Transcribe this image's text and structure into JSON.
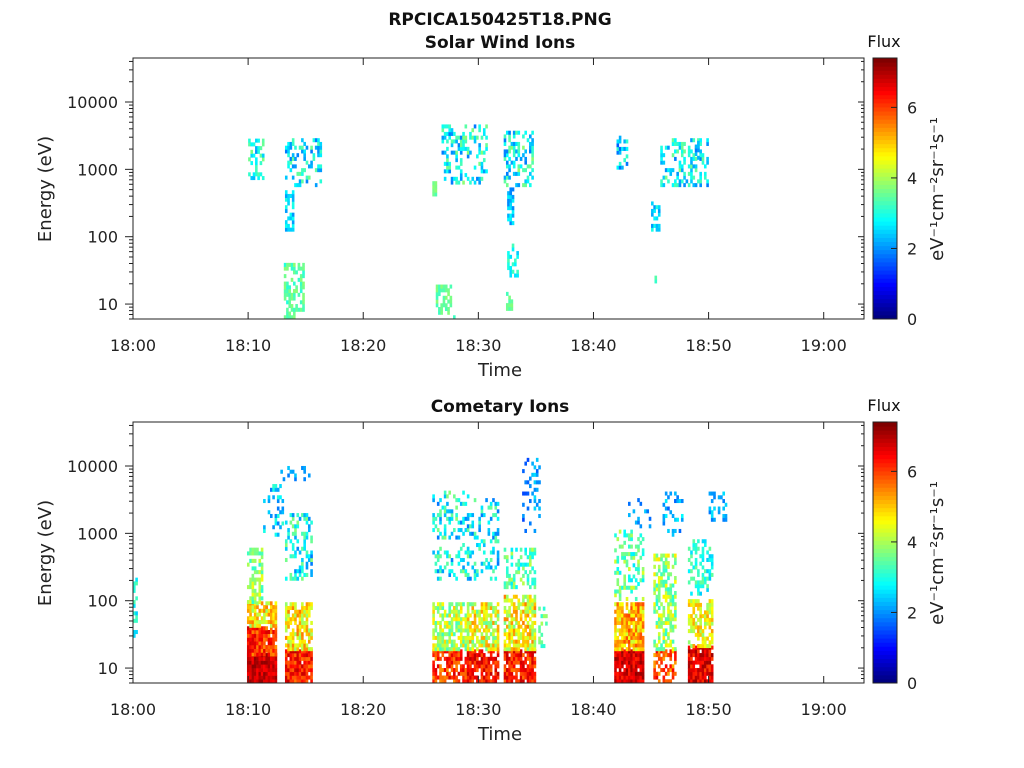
{
  "chart_data": [
    {
      "type": "heatmap",
      "figure_title": "RPCICA150425T18.PNG",
      "title": "Solar Wind Ions",
      "xlabel": "Time",
      "ylabel": "Energy (eV)",
      "x_ticks": [
        "18:00",
        "18:10",
        "18:20",
        "18:30",
        "18:40",
        "18:50",
        "19:00"
      ],
      "x_range_minutes": [
        0,
        63.5
      ],
      "y_scale": "log",
      "y_ticks": [
        "10",
        "100",
        "1000",
        "10000"
      ],
      "y_range": [
        6,
        45000
      ],
      "colorbar": {
        "title": "Flux",
        "label": "eV⁻¹cm⁻²sr⁻¹s⁻¹",
        "ticks": [
          "0",
          "2",
          "4",
          "6"
        ],
        "range": [
          0,
          7.4
        ],
        "colormap": "jet"
      },
      "clusters": [
        {
          "t": [
            10.0,
            11.3
          ],
          "e": [
            700,
            2800
          ],
          "flux": [
            2.0,
            3.8
          ],
          "d": 0.45
        },
        {
          "t": [
            13.2,
            16.2
          ],
          "e": [
            550,
            2600
          ],
          "flux": [
            1.8,
            3.6
          ],
          "d": 0.38
        },
        {
          "t": [
            13.2,
            13.9
          ],
          "e": [
            120,
            450
          ],
          "flux": [
            2.0,
            3.0
          ],
          "d": 0.5
        },
        {
          "t": [
            13.1,
            14.8
          ],
          "e": [
            6,
            40
          ],
          "flux": [
            3.0,
            3.8
          ],
          "d": 0.55
        },
        {
          "t": [
            26.0,
            26.3
          ],
          "e": [
            400,
            600
          ],
          "flux": [
            3.2,
            3.8
          ],
          "d": 0.8
        },
        {
          "t": [
            26.8,
            30.6
          ],
          "e": [
            600,
            4200
          ],
          "flux": [
            1.8,
            3.8
          ],
          "d": 0.35
        },
        {
          "t": [
            26.3,
            27.5
          ],
          "e": [
            7,
            18
          ],
          "flux": [
            3.2,
            3.8
          ],
          "d": 0.6
        },
        {
          "t": [
            27.8,
            28.0
          ],
          "e": [
            6,
            8
          ],
          "flux": [
            3.2,
            3.6
          ],
          "d": 0.6
        },
        {
          "t": [
            32.2,
            34.8
          ],
          "e": [
            550,
            3600
          ],
          "flux": [
            1.8,
            3.8
          ],
          "d": 0.42
        },
        {
          "t": [
            32.5,
            33.0
          ],
          "e": [
            150,
            500
          ],
          "flux": [
            1.8,
            2.8
          ],
          "d": 0.55
        },
        {
          "t": [
            32.5,
            33.4
          ],
          "e": [
            25,
            70
          ],
          "flux": [
            2.4,
            3.4
          ],
          "d": 0.6
        },
        {
          "t": [
            32.4,
            33.0
          ],
          "e": [
            8,
            14
          ],
          "flux": [
            3.2,
            3.8
          ],
          "d": 0.7
        },
        {
          "t": [
            42.0,
            43.0
          ],
          "e": [
            1000,
            2800
          ],
          "flux": [
            1.6,
            3.2
          ],
          "d": 0.4
        },
        {
          "t": [
            45.0,
            45.8
          ],
          "e": [
            120,
            300
          ],
          "flux": [
            2.0,
            3.0
          ],
          "d": 0.6
        },
        {
          "t": [
            45.8,
            50.0
          ],
          "e": [
            550,
            2600
          ],
          "flux": [
            1.8,
            3.8
          ],
          "d": 0.4
        },
        {
          "t": [
            45.3,
            45.5
          ],
          "e": [
            18,
            24
          ],
          "flux": [
            3.0,
            3.4
          ],
          "d": 0.8
        },
        {
          "t": [
            48.8,
            49.2
          ],
          "e": [
            1400,
            2600
          ],
          "flux": [
            1.8,
            2.4
          ],
          "d": 0.5
        }
      ]
    },
    {
      "type": "heatmap",
      "title": "Cometary Ions",
      "xlabel": "Time",
      "ylabel": "Energy (eV)",
      "x_ticks": [
        "18:00",
        "18:10",
        "18:20",
        "18:30",
        "18:40",
        "18:50",
        "19:00"
      ],
      "x_range_minutes": [
        0,
        63.5
      ],
      "y_scale": "log",
      "y_ticks": [
        "10",
        "100",
        "1000",
        "10000"
      ],
      "y_range": [
        6,
        45000
      ],
      "colorbar": {
        "title": "Flux",
        "label": "eV⁻¹cm⁻²sr⁻¹s⁻¹",
        "ticks": [
          "0",
          "2",
          "4",
          "6"
        ],
        "range": [
          0,
          7.4
        ],
        "colormap": "jet"
      },
      "clusters": [
        {
          "t": [
            0.0,
            0.3
          ],
          "e": [
            25,
            200
          ],
          "flux": [
            2.4,
            3.4
          ],
          "d": 0.5
        },
        {
          "t": [
            9.9,
            12.4
          ],
          "e": [
            6,
            15
          ],
          "flux": [
            6.4,
            7.3
          ],
          "d": 1.0
        },
        {
          "t": [
            9.9,
            12.4
          ],
          "e": [
            15,
            40
          ],
          "flux": [
            5.4,
            6.8
          ],
          "d": 0.95
        },
        {
          "t": [
            9.9,
            12.4
          ],
          "e": [
            40,
            90
          ],
          "flux": [
            3.8,
            5.6
          ],
          "d": 0.85
        },
        {
          "t": [
            9.9,
            11.2
          ],
          "e": [
            90,
            600
          ],
          "flux": [
            3.0,
            4.6
          ],
          "d": 0.55
        },
        {
          "t": [
            11.3,
            13.0
          ],
          "e": [
            900,
            5000
          ],
          "flux": [
            1.8,
            3.2
          ],
          "d": 0.25
        },
        {
          "t": [
            13.2,
            15.4
          ],
          "e": [
            6,
            18
          ],
          "flux": [
            5.6,
            7.0
          ],
          "d": 0.95
        },
        {
          "t": [
            13.2,
            15.4
          ],
          "e": [
            18,
            90
          ],
          "flux": [
            3.8,
            5.6
          ],
          "d": 0.8
        },
        {
          "t": [
            13.2,
            15.4
          ],
          "e": [
            200,
            1800
          ],
          "flux": [
            1.8,
            3.8
          ],
          "d": 0.35
        },
        {
          "t": [
            12.8,
            15.2
          ],
          "e": [
            6000,
            9500
          ],
          "flux": [
            1.8,
            2.4
          ],
          "d": 0.2
        },
        {
          "t": [
            26.0,
            29.0
          ],
          "e": [
            6,
            18
          ],
          "flux": [
            5.4,
            6.8
          ],
          "d": 0.7
        },
        {
          "t": [
            26.0,
            29.0
          ],
          "e": [
            18,
            90
          ],
          "flux": [
            3.2,
            5.0
          ],
          "d": 0.65
        },
        {
          "t": [
            26.0,
            29.0
          ],
          "e": [
            200,
            4200
          ],
          "flux": [
            1.8,
            3.8
          ],
          "d": 0.3
        },
        {
          "t": [
            29.0,
            31.6
          ],
          "e": [
            6,
            18
          ],
          "flux": [
            5.8,
            7.0
          ],
          "d": 0.8
        },
        {
          "t": [
            29.0,
            31.6
          ],
          "e": [
            18,
            90
          ],
          "flux": [
            3.4,
            5.4
          ],
          "d": 0.65
        },
        {
          "t": [
            29.0,
            31.6
          ],
          "e": [
            200,
            3200
          ],
          "flux": [
            1.8,
            3.6
          ],
          "d": 0.28
        },
        {
          "t": [
            32.2,
            35.0
          ],
          "e": [
            6,
            18
          ],
          "flux": [
            5.6,
            6.9
          ],
          "d": 0.85
        },
        {
          "t": [
            32.2,
            35.0
          ],
          "e": [
            18,
            120
          ],
          "flux": [
            3.6,
            5.6
          ],
          "d": 0.7
        },
        {
          "t": [
            32.2,
            35.0
          ],
          "e": [
            150,
            600
          ],
          "flux": [
            2.6,
            4.2
          ],
          "d": 0.45
        },
        {
          "t": [
            33.8,
            35.4
          ],
          "e": [
            900,
            12000
          ],
          "flux": [
            1.4,
            2.6
          ],
          "d": 0.25
        },
        {
          "t": [
            35.2,
            36.0
          ],
          "e": [
            20,
            80
          ],
          "flux": [
            3.0,
            4.0
          ],
          "d": 0.4
        },
        {
          "t": [
            41.8,
            44.4
          ],
          "e": [
            6,
            18
          ],
          "flux": [
            6.2,
            7.3
          ],
          "d": 0.95
        },
        {
          "t": [
            41.8,
            44.4
          ],
          "e": [
            18,
            90
          ],
          "flux": [
            4.2,
            6.0
          ],
          "d": 0.85
        },
        {
          "t": [
            41.8,
            44.4
          ],
          "e": [
            100,
            1000
          ],
          "flux": [
            2.6,
            4.4
          ],
          "d": 0.35
        },
        {
          "t": [
            43.0,
            45.0
          ],
          "e": [
            1200,
            4000
          ],
          "flux": [
            1.4,
            2.4
          ],
          "d": 0.2
        },
        {
          "t": [
            45.2,
            47.2
          ],
          "e": [
            6,
            18
          ],
          "flux": [
            5.2,
            6.6
          ],
          "d": 0.6
        },
        {
          "t": [
            45.2,
            47.2
          ],
          "e": [
            18,
            500
          ],
          "flux": [
            3.0,
            4.8
          ],
          "d": 0.55
        },
        {
          "t": [
            46.0,
            47.8
          ],
          "e": [
            900,
            4000
          ],
          "flux": [
            1.6,
            2.8
          ],
          "d": 0.25
        },
        {
          "t": [
            48.2,
            50.4
          ],
          "e": [
            6,
            20
          ],
          "flux": [
            6.0,
            7.2
          ],
          "d": 0.9
        },
        {
          "t": [
            48.2,
            50.4
          ],
          "e": [
            20,
            100
          ],
          "flux": [
            3.8,
            5.4
          ],
          "d": 0.6
        },
        {
          "t": [
            48.2,
            50.4
          ],
          "e": [
            120,
            800
          ],
          "flux": [
            2.4,
            3.6
          ],
          "d": 0.45
        },
        {
          "t": [
            50.0,
            51.6
          ],
          "e": [
            1500,
            4000
          ],
          "flux": [
            1.8,
            2.6
          ],
          "d": 0.45
        }
      ]
    }
  ]
}
